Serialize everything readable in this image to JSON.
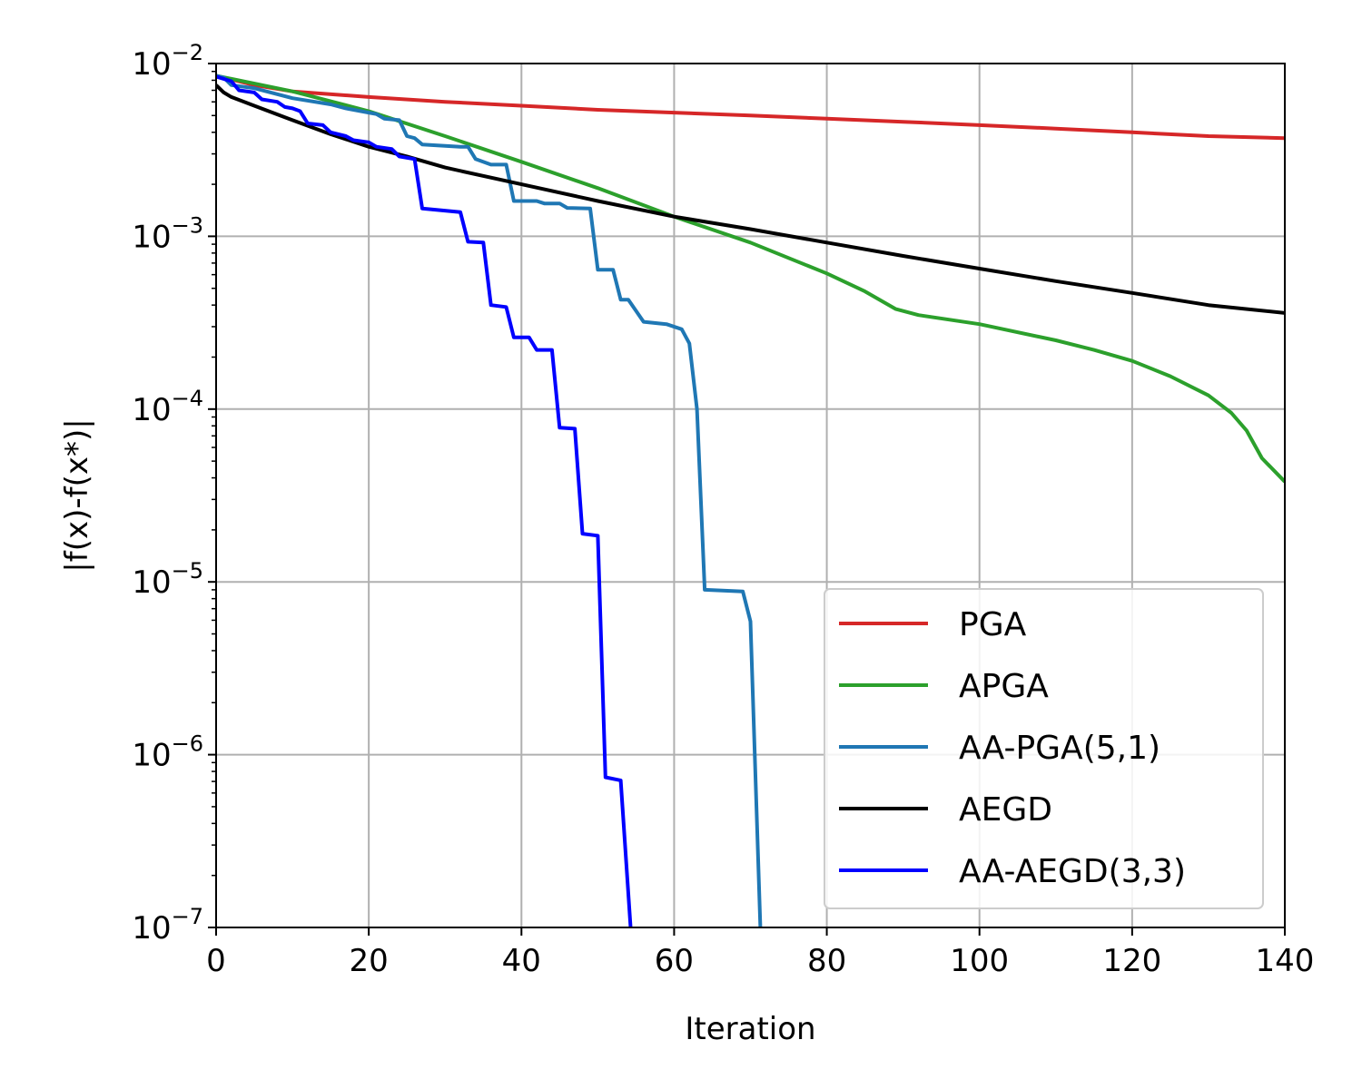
{
  "chart_data": {
    "type": "line",
    "title": "",
    "xlabel": "Iteration",
    "ylabel": "|f(x)-f(x*)|",
    "xlim": [
      0,
      140
    ],
    "ylim": [
      1e-07,
      0.01
    ],
    "yscale": "log",
    "grid": true,
    "legend_position": "lower-right",
    "x_ticks": [
      0,
      20,
      40,
      60,
      80,
      100,
      120,
      140
    ],
    "x_tick_labels": [
      "0",
      "20",
      "40",
      "60",
      "80",
      "100",
      "120",
      "140"
    ],
    "y_ticks": [
      1e-07,
      1e-06,
      1e-05,
      0.0001,
      0.001,
      0.01
    ],
    "y_tick_labels": [
      {
        "base": "10",
        "exp": "−7"
      },
      {
        "base": "10",
        "exp": "−6"
      },
      {
        "base": "10",
        "exp": "−5"
      },
      {
        "base": "10",
        "exp": "−4"
      },
      {
        "base": "10",
        "exp": "−3"
      },
      {
        "base": "10",
        "exp": "−2"
      }
    ],
    "series": [
      {
        "name": "PGA",
        "color": "#d62728",
        "points": [
          [
            0,
            0.0085
          ],
          [
            5,
            0.0075
          ],
          [
            10,
            0.0069
          ],
          [
            20,
            0.0064
          ],
          [
            30,
            0.006
          ],
          [
            40,
            0.0057
          ],
          [
            50,
            0.0054
          ],
          [
            60,
            0.0052
          ],
          [
            70,
            0.005
          ],
          [
            80,
            0.0048
          ],
          [
            90,
            0.0046
          ],
          [
            100,
            0.0044
          ],
          [
            110,
            0.0042
          ],
          [
            120,
            0.004
          ],
          [
            130,
            0.0038
          ],
          [
            140,
            0.0037
          ]
        ]
      },
      {
        "name": "APGA",
        "color": "#2ca02c",
        "points": [
          [
            0,
            0.0085
          ],
          [
            10,
            0.0069
          ],
          [
            20,
            0.0053
          ],
          [
            30,
            0.0038
          ],
          [
            40,
            0.0027
          ],
          [
            50,
            0.0019
          ],
          [
            60,
            0.0013
          ],
          [
            70,
            0.00092
          ],
          [
            80,
            0.00061
          ],
          [
            85,
            0.00048
          ],
          [
            89,
            0.00038
          ],
          [
            92,
            0.00035
          ],
          [
            100,
            0.00031
          ],
          [
            110,
            0.00025
          ],
          [
            115,
            0.00022
          ],
          [
            120,
            0.00019
          ],
          [
            125,
            0.000155
          ],
          [
            130,
            0.00012
          ],
          [
            133,
            9.5e-05
          ],
          [
            135,
            7.5e-05
          ],
          [
            137,
            5.2e-05
          ],
          [
            140,
            3.8e-05
          ]
        ]
      },
      {
        "name": "AA-PGA(5,1)",
        "color": "#1f77b4",
        "points": [
          [
            0,
            0.0085
          ],
          [
            1,
            0.0083
          ],
          [
            2,
            0.0075
          ],
          [
            5,
            0.0072
          ],
          [
            10,
            0.0063
          ],
          [
            15,
            0.0058
          ],
          [
            17,
            0.0055
          ],
          [
            20,
            0.0052
          ],
          [
            21,
            0.0051
          ],
          [
            22,
            0.0048
          ],
          [
            24,
            0.0047
          ],
          [
            25,
            0.0038
          ],
          [
            26,
            0.0037
          ],
          [
            27,
            0.0034
          ],
          [
            32,
            0.0033
          ],
          [
            33,
            0.0033
          ],
          [
            34,
            0.0028
          ],
          [
            36,
            0.0026
          ],
          [
            38,
            0.0026
          ],
          [
            39,
            0.0016
          ],
          [
            42,
            0.0016
          ],
          [
            43,
            0.00155
          ],
          [
            45,
            0.00155
          ],
          [
            46,
            0.00146
          ],
          [
            49,
            0.00145
          ],
          [
            50,
            0.00064
          ],
          [
            52,
            0.00064
          ],
          [
            53,
            0.00043
          ],
          [
            54,
            0.00043
          ],
          [
            56,
            0.00032
          ],
          [
            59,
            0.00031
          ],
          [
            61,
            0.00029
          ],
          [
            62,
            0.00024
          ],
          [
            63,
            0.0001
          ],
          [
            64,
            9e-06
          ],
          [
            69,
            8.8e-06
          ],
          [
            70,
            5.9e-06
          ],
          [
            71.3,
            1e-07
          ]
        ]
      },
      {
        "name": "AEGD",
        "color": "#000000",
        "points": [
          [
            0,
            0.0075
          ],
          [
            1,
            0.0068
          ],
          [
            2,
            0.0064
          ],
          [
            5,
            0.0057
          ],
          [
            10,
            0.0047
          ],
          [
            15,
            0.0039
          ],
          [
            20,
            0.0033
          ],
          [
            25,
            0.0029
          ],
          [
            30,
            0.0025
          ],
          [
            40,
            0.002
          ],
          [
            50,
            0.0016
          ],
          [
            60,
            0.0013
          ],
          [
            70,
            0.0011
          ],
          [
            80,
            0.00092
          ],
          [
            90,
            0.00077
          ],
          [
            100,
            0.00065
          ],
          [
            110,
            0.00055
          ],
          [
            120,
            0.00047
          ],
          [
            130,
            0.0004
          ],
          [
            140,
            0.00036
          ]
        ]
      },
      {
        "name": "AA-AEGD(3,3)",
        "color": "#0000ff",
        "points": [
          [
            0,
            0.0084
          ],
          [
            2,
            0.0079
          ],
          [
            3,
            0.007
          ],
          [
            5,
            0.0068
          ],
          [
            6,
            0.0062
          ],
          [
            8,
            0.006
          ],
          [
            9,
            0.0056
          ],
          [
            10,
            0.0055
          ],
          [
            11,
            0.0053
          ],
          [
            12,
            0.0045
          ],
          [
            14,
            0.0044
          ],
          [
            15,
            0.004
          ],
          [
            17,
            0.0038
          ],
          [
            18,
            0.0036
          ],
          [
            20,
            0.0035
          ],
          [
            21,
            0.0033
          ],
          [
            23,
            0.0032
          ],
          [
            24,
            0.0029
          ],
          [
            26,
            0.0028
          ],
          [
            27,
            0.00145
          ],
          [
            32,
            0.00138
          ],
          [
            33,
            0.00093
          ],
          [
            35,
            0.00092
          ],
          [
            36,
            0.0004
          ],
          [
            38,
            0.00039
          ],
          [
            39,
            0.00026
          ],
          [
            41,
            0.00026
          ],
          [
            42,
            0.00022
          ],
          [
            44,
            0.00022
          ],
          [
            45,
            7.8e-05
          ],
          [
            47,
            7.7e-05
          ],
          [
            48,
            1.9e-05
          ],
          [
            50,
            1.85e-05
          ],
          [
            51,
            7.4e-07
          ],
          [
            53,
            7.1e-07
          ],
          [
            54.3,
            1e-07
          ]
        ]
      }
    ]
  }
}
